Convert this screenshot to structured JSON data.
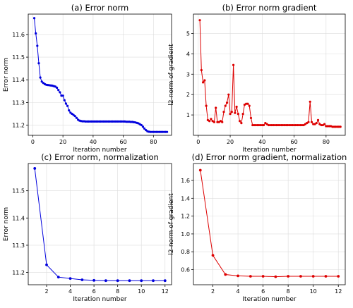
{
  "chart_data": [
    {
      "type": "line",
      "title": "(a) Error norm",
      "xlabel": "Iteration number",
      "ylabel": "Error norm",
      "color": "#0000dd",
      "xlim": [
        -3,
        92
      ],
      "ylim": [
        11.155,
        11.69
      ],
      "xticks": [
        0,
        20,
        40,
        60,
        80
      ],
      "yticks": [
        11.2,
        11.3,
        11.4,
        11.5,
        11.6
      ],
      "grid": true,
      "x": [
        1,
        2,
        3,
        4,
        5,
        6,
        7,
        8,
        9,
        10,
        11,
        12,
        13,
        14,
        15,
        16,
        17,
        18,
        19,
        20,
        21,
        22,
        23,
        24,
        25,
        26,
        27,
        28,
        29,
        30,
        31,
        32,
        33,
        34,
        35,
        36,
        37,
        38,
        39,
        40,
        41,
        42,
        43,
        44,
        45,
        46,
        47,
        48,
        49,
        50,
        51,
        52,
        53,
        54,
        55,
        56,
        57,
        58,
        59,
        60,
        61,
        62,
        63,
        64,
        65,
        66,
        67,
        68,
        69,
        70,
        71,
        72,
        73,
        74,
        75,
        76,
        77,
        78,
        79,
        80,
        81,
        82,
        83,
        84,
        85,
        86,
        87,
        88,
        89
      ],
      "y": [
        11.672,
        11.605,
        11.55,
        11.473,
        11.41,
        11.392,
        11.386,
        11.381,
        11.378,
        11.377,
        11.376,
        11.375,
        11.374,
        11.372,
        11.37,
        11.365,
        11.355,
        11.345,
        11.33,
        11.33,
        11.31,
        11.295,
        11.285,
        11.265,
        11.255,
        11.25,
        11.245,
        11.24,
        11.232,
        11.224,
        11.22,
        11.218,
        11.217,
        11.217,
        11.216,
        11.216,
        11.216,
        11.216,
        11.216,
        11.216,
        11.216,
        11.216,
        11.216,
        11.216,
        11.216,
        11.216,
        11.216,
        11.216,
        11.216,
        11.216,
        11.216,
        11.216,
        11.216,
        11.216,
        11.216,
        11.216,
        11.216,
        11.216,
        11.216,
        11.216,
        11.216,
        11.215,
        11.215,
        11.215,
        11.214,
        11.214,
        11.213,
        11.212,
        11.21,
        11.208,
        11.204,
        11.2,
        11.193,
        11.185,
        11.178,
        11.173,
        11.171,
        11.17,
        11.17,
        11.17,
        11.17,
        11.17,
        11.17,
        11.17,
        11.17,
        11.17,
        11.17,
        11.17,
        11.17
      ]
    },
    {
      "type": "line",
      "title": "(b) Error norm gradient",
      "xlabel": "Iteration number",
      "ylabel": "l2-norm of gradient",
      "color": "#dd0000",
      "xlim": [
        -3,
        92
      ],
      "ylim": [
        0,
        5.95
      ],
      "xticks": [
        0,
        20,
        40,
        60,
        80
      ],
      "yticks": [
        1,
        2,
        3,
        4,
        5
      ],
      "grid": true,
      "x": [
        1,
        2,
        3,
        4,
        5,
        6,
        7,
        8,
        9,
        10,
        11,
        12,
        13,
        14,
        15,
        16,
        17,
        18,
        19,
        20,
        21,
        22,
        23,
        24,
        25,
        26,
        27,
        28,
        29,
        30,
        31,
        32,
        33,
        34,
        35,
        36,
        37,
        38,
        39,
        40,
        41,
        42,
        43,
        44,
        45,
        46,
        47,
        48,
        49,
        50,
        51,
        52,
        53,
        54,
        55,
        56,
        57,
        58,
        59,
        60,
        61,
        62,
        63,
        64,
        65,
        66,
        67,
        68,
        69,
        70,
        71,
        72,
        73,
        74,
        75,
        76,
        77,
        78,
        79,
        80,
        81,
        82,
        83,
        84,
        85,
        86,
        87,
        88,
        89
      ],
      "y": [
        5.65,
        3.2,
        2.6,
        2.7,
        1.45,
        0.75,
        0.7,
        0.8,
        0.7,
        0.65,
        1.35,
        0.65,
        0.65,
        0.7,
        0.65,
        1.15,
        1.45,
        1.6,
        2.0,
        1.05,
        1.15,
        3.45,
        1.1,
        1.4,
        1.05,
        0.7,
        0.6,
        1.05,
        1.5,
        1.55,
        1.55,
        1.45,
        0.85,
        0.5,
        0.5,
        0.5,
        0.5,
        0.5,
        0.5,
        0.5,
        0.5,
        0.6,
        0.55,
        0.5,
        0.5,
        0.5,
        0.5,
        0.5,
        0.5,
        0.5,
        0.5,
        0.5,
        0.5,
        0.5,
        0.5,
        0.5,
        0.5,
        0.5,
        0.5,
        0.5,
        0.5,
        0.5,
        0.5,
        0.5,
        0.5,
        0.5,
        0.55,
        0.6,
        0.65,
        1.65,
        0.65,
        0.55,
        0.55,
        0.6,
        0.75,
        0.55,
        0.5,
        0.5,
        0.55,
        0.45,
        0.45,
        0.45,
        0.45,
        0.42,
        0.42,
        0.42,
        0.42,
        0.42,
        0.42
      ]
    },
    {
      "type": "line",
      "title": "(c) Error norm, normalization",
      "xlabel": "Iteration number",
      "ylabel": "Error norm",
      "color": "#0000dd",
      "xlim": [
        0.45,
        12.55
      ],
      "ylim": [
        11.155,
        11.6
      ],
      "xticks": [
        2,
        4,
        6,
        8,
        10,
        12
      ],
      "yticks": [
        11.2,
        11.3,
        11.4,
        11.5
      ],
      "grid": true,
      "x": [
        1,
        2,
        3,
        4,
        5,
        6,
        7,
        8,
        9,
        10,
        11,
        12
      ],
      "y": [
        11.582,
        11.228,
        11.183,
        11.178,
        11.173,
        11.171,
        11.17,
        11.17,
        11.17,
        11.17,
        11.17,
        11.17
      ]
    },
    {
      "type": "line",
      "title": "(d) Error norm gradient, normalization",
      "xlabel": "Iteration number",
      "ylabel": "l2-norm of gradient",
      "color": "#dd0000",
      "xlim": [
        0.45,
        12.55
      ],
      "ylim": [
        0.43,
        1.79
      ],
      "xticks": [
        2,
        4,
        6,
        8,
        10,
        12
      ],
      "yticks": [
        0.6,
        0.8,
        1.0,
        1.2,
        1.4,
        1.6
      ],
      "grid": true,
      "x": [
        1,
        2,
        3,
        4,
        5,
        6,
        7,
        8,
        9,
        10,
        11,
        12
      ],
      "y": [
        1.715,
        0.76,
        0.545,
        0.53,
        0.525,
        0.525,
        0.52,
        0.525,
        0.525,
        0.525,
        0.525,
        0.525
      ]
    }
  ]
}
